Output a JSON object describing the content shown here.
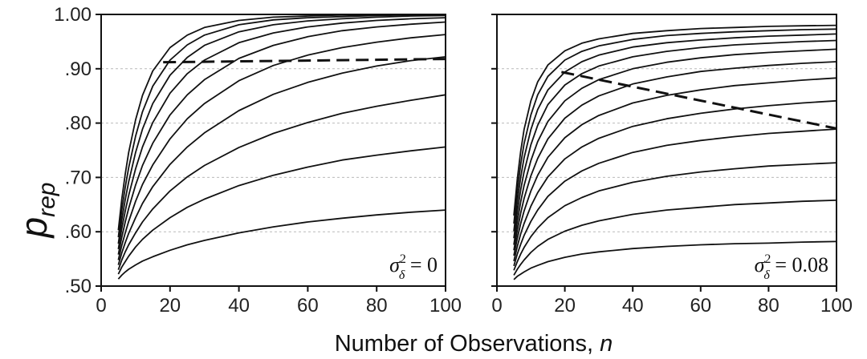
{
  "chart_data": {
    "type": "line",
    "ylabel_main": "p",
    "ylabel_sub": "rep",
    "xlabel": "Number of Observations, ",
    "xlabel_var": "n",
    "panels": [
      {
        "annotation": {
          "symbol": "σ",
          "sup": "2",
          "sub": "δ",
          "rest": " = 0"
        },
        "xlim": [
          0,
          100
        ],
        "ylim": [
          0.5,
          1.0
        ],
        "xticks": [
          0,
          20,
          40,
          60,
          80,
          100
        ],
        "xtick_labels": [
          "0",
          "20",
          "40",
          "60",
          "80",
          "100"
        ],
        "yticks": [
          0.5,
          0.6,
          0.7,
          0.8,
          0.9,
          1.0
        ],
        "ytick_labels": [
          ".50",
          ".60",
          ".70",
          ".80",
          ".90",
          "1.00"
        ],
        "series_x": [
          5,
          6,
          7,
          8,
          10,
          12,
          15,
          20,
          25,
          30,
          40,
          50,
          60,
          70,
          80,
          90,
          100
        ],
        "series": [
          {
            "values": [
              0.513,
              0.52,
              0.526,
              0.531,
              0.539,
              0.546,
              0.554,
              0.566,
              0.576,
              0.584,
              0.598,
              0.609,
              0.618,
              0.625,
              0.631,
              0.636,
              0.64
            ]
          },
          {
            "values": [
              0.522,
              0.535,
              0.545,
              0.555,
              0.572,
              0.586,
              0.603,
              0.626,
              0.645,
              0.66,
              0.685,
              0.704,
              0.719,
              0.732,
              0.741,
              0.749,
              0.756
            ]
          },
          {
            "values": [
              0.53,
              0.548,
              0.563,
              0.576,
              0.598,
              0.618,
              0.642,
              0.675,
              0.701,
              0.722,
              0.755,
              0.781,
              0.801,
              0.818,
              0.831,
              0.842,
              0.852
            ]
          },
          {
            "values": [
              0.539,
              0.561,
              0.58,
              0.597,
              0.626,
              0.652,
              0.683,
              0.724,
              0.756,
              0.782,
              0.823,
              0.853,
              0.875,
              0.892,
              0.905,
              0.915,
              0.922
            ]
          },
          {
            "values": [
              0.548,
              0.575,
              0.598,
              0.619,
              0.656,
              0.687,
              0.723,
              0.771,
              0.808,
              0.836,
              0.878,
              0.906,
              0.925,
              0.939,
              0.949,
              0.957,
              0.963
            ]
          },
          {
            "values": [
              0.558,
              0.59,
              0.618,
              0.643,
              0.686,
              0.722,
              0.763,
              0.815,
              0.852,
              0.88,
              0.919,
              0.943,
              0.959,
              0.97,
              0.977,
              0.982,
              0.986
            ]
          },
          {
            "values": [
              0.568,
              0.606,
              0.638,
              0.667,
              0.716,
              0.756,
              0.801,
              0.855,
              0.891,
              0.916,
              0.948,
              0.966,
              0.977,
              0.984,
              0.989,
              0.992,
              0.994
            ]
          },
          {
            "values": [
              0.578,
              0.622,
              0.659,
              0.692,
              0.746,
              0.789,
              0.836,
              0.888,
              0.921,
              0.943,
              0.968,
              0.981,
              0.988,
              0.992,
              0.995,
              0.997,
              0.998
            ]
          },
          {
            "values": [
              0.59,
              0.64,
              0.682,
              0.718,
              0.776,
              0.821,
              0.868,
              0.916,
              0.944,
              0.962,
              0.981,
              0.99,
              0.994,
              0.996,
              0.998,
              0.999,
              0.999
            ]
          },
          {
            "values": [
              0.603,
              0.66,
              0.706,
              0.746,
              0.806,
              0.851,
              0.896,
              0.939,
              0.962,
              0.976,
              0.989,
              0.995,
              0.997,
              0.999,
              0.999,
              1.0,
              1.0
            ]
          }
        ],
        "dashed_line": {
          "x": [
            18,
            100
          ],
          "y": [
            0.912,
            0.918
          ]
        },
        "dashed_name": "dashed-line-left"
      },
      {
        "annotation": {
          "symbol": "σ",
          "sup": "2",
          "sub": "δ",
          "rest": " = 0.08"
        },
        "xlim": [
          0,
          100
        ],
        "ylim": [
          0.5,
          1.0
        ],
        "xticks": [
          0,
          20,
          40,
          60,
          80,
          100
        ],
        "xtick_labels": [
          "0",
          "20",
          "40",
          "60",
          "80",
          "100"
        ],
        "yticks": [
          0.5,
          0.6,
          0.7,
          0.8,
          0.9,
          1.0
        ],
        "ytick_labels": [
          "",
          "",
          "",
          "",
          "",
          ""
        ],
        "series_x": [
          5,
          6,
          7,
          8,
          10,
          12,
          15,
          20,
          25,
          30,
          40,
          50,
          60,
          70,
          80,
          90,
          100
        ],
        "series": [
          {
            "values": [
              0.512,
              0.518,
              0.522,
              0.526,
              0.533,
              0.538,
              0.545,
              0.553,
              0.559,
              0.563,
              0.569,
              0.573,
              0.576,
              0.578,
              0.579,
              0.581,
              0.582
            ]
          },
          {
            "values": [
              0.52,
              0.531,
              0.54,
              0.548,
              0.562,
              0.573,
              0.586,
              0.601,
              0.612,
              0.62,
              0.632,
              0.64,
              0.645,
              0.65,
              0.653,
              0.656,
              0.658
            ]
          },
          {
            "values": [
              0.529,
              0.545,
              0.559,
              0.571,
              0.591,
              0.607,
              0.626,
              0.648,
              0.663,
              0.675,
              0.691,
              0.702,
              0.71,
              0.716,
              0.721,
              0.724,
              0.727
            ]
          },
          {
            "values": [
              0.537,
              0.559,
              0.577,
              0.593,
              0.619,
              0.64,
              0.665,
              0.693,
              0.712,
              0.726,
              0.746,
              0.759,
              0.768,
              0.775,
              0.781,
              0.785,
              0.789
            ]
          },
          {
            "values": [
              0.546,
              0.573,
              0.596,
              0.615,
              0.647,
              0.672,
              0.701,
              0.734,
              0.756,
              0.772,
              0.794,
              0.808,
              0.818,
              0.826,
              0.832,
              0.837,
              0.841
            ]
          },
          {
            "values": [
              0.556,
              0.588,
              0.615,
              0.638,
              0.675,
              0.704,
              0.737,
              0.773,
              0.797,
              0.814,
              0.837,
              0.851,
              0.861,
              0.869,
              0.874,
              0.879,
              0.883
            ]
          },
          {
            "values": [
              0.566,
              0.603,
              0.634,
              0.661,
              0.703,
              0.735,
              0.771,
              0.809,
              0.833,
              0.85,
              0.872,
              0.885,
              0.895,
              0.901,
              0.906,
              0.91,
              0.913
            ]
          },
          {
            "values": [
              0.576,
              0.619,
              0.655,
              0.685,
              0.731,
              0.766,
              0.803,
              0.841,
              0.864,
              0.88,
              0.9,
              0.912,
              0.92,
              0.926,
              0.93,
              0.933,
              0.936
            ]
          },
          {
            "values": [
              0.588,
              0.637,
              0.677,
              0.71,
              0.76,
              0.796,
              0.834,
              0.87,
              0.891,
              0.905,
              0.922,
              0.932,
              0.939,
              0.944,
              0.947,
              0.95,
              0.952
            ]
          },
          {
            "values": [
              0.601,
              0.656,
              0.7,
              0.736,
              0.788,
              0.825,
              0.861,
              0.894,
              0.913,
              0.925,
              0.94,
              0.948,
              0.953,
              0.957,
              0.96,
              0.962,
              0.964
            ]
          },
          {
            "values": [
              0.615,
              0.676,
              0.724,
              0.762,
              0.815,
              0.852,
              0.886,
              0.916,
              0.932,
              0.942,
              0.954,
              0.961,
              0.965,
              0.968,
              0.97,
              0.972,
              0.973
            ]
          },
          {
            "values": [
              0.63,
              0.697,
              0.748,
              0.788,
              0.841,
              0.876,
              0.907,
              0.933,
              0.947,
              0.955,
              0.965,
              0.97,
              0.974,
              0.976,
              0.978,
              0.979,
              0.98
            ]
          }
        ],
        "dashed_line": {
          "x": [
            19,
            100
          ],
          "y": [
            0.894,
            0.79
          ]
        },
        "dashed_name": "dashed-line-right"
      }
    ]
  }
}
